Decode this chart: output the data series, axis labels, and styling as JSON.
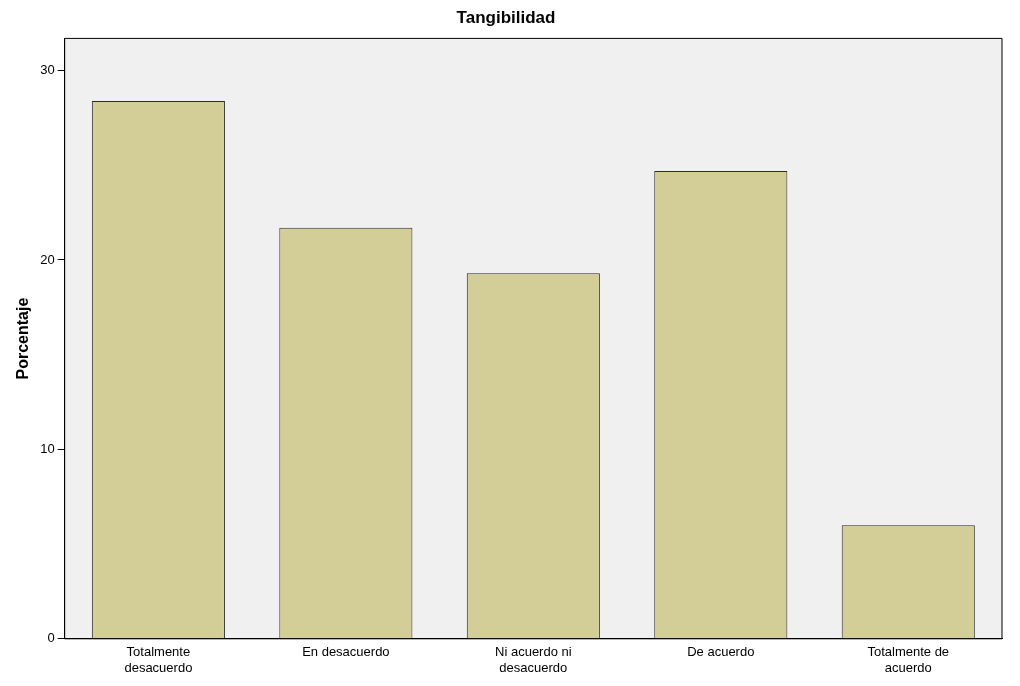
{
  "chart_data": {
    "type": "bar",
    "title": "Tangibilidad",
    "ylabel": "Porcentaje",
    "categories": [
      "Totalmente desacuerdo",
      "En desacuerdo",
      "Ni acuerdo ni desacuerdo",
      "De acuerdo",
      "Totalmente de acuerdo"
    ],
    "values": [
      28.4,
      21.7,
      19.3,
      24.7,
      6.0
    ],
    "color": "#d3ce97",
    "ylim": [
      0,
      31.7
    ],
    "yticks": [
      0,
      10,
      20,
      30
    ],
    "grid": false,
    "legend": false
  }
}
